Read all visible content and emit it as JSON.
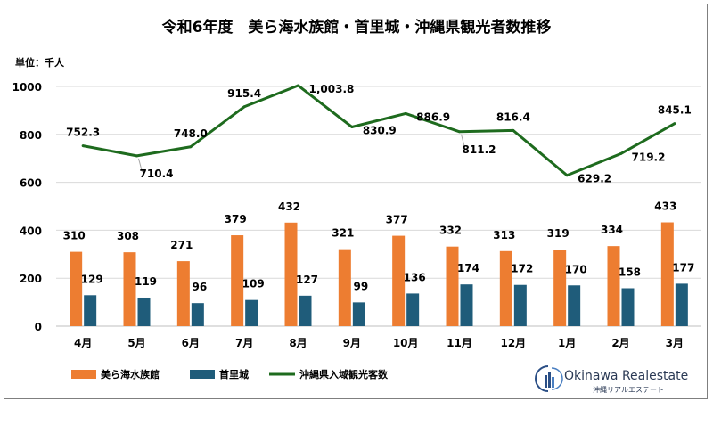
{
  "title": "令和6年度　美ら海水族館・首里城・沖縄県観光者数推移",
  "unit_label": "単位：千人",
  "logo": {
    "name": "Okinawa Realestate",
    "subtitle": "沖縄リアルエステート"
  },
  "colors": {
    "churaumi": "#ED7D31",
    "shurijo": "#1F5C7A",
    "visitors": "#1E6B1E",
    "grid": "#d9d9d9",
    "text": "#000000"
  },
  "chart_data": {
    "type": "bar",
    "title": "令和6年度　美ら海水族館・首里城・沖縄県観光者数推移",
    "categories": [
      "4月",
      "5月",
      "6月",
      "7月",
      "8月",
      "9月",
      "10月",
      "11月",
      "12月",
      "1月",
      "2月",
      "3月"
    ],
    "yticks": [
      "0",
      "200",
      "400",
      "600",
      "800",
      "1000"
    ],
    "ylim": [
      0,
      1000
    ],
    "ylabel": "単位：千人",
    "grid": true,
    "legend_position": "bottom",
    "series": [
      {
        "name": "美ら海水族館",
        "type": "bar",
        "values": [
          310,
          308,
          271,
          379,
          432,
          321,
          377,
          332,
          313,
          319,
          334,
          433
        ],
        "labels": [
          "310",
          "308",
          "271",
          "379",
          "432",
          "321",
          "377",
          "332",
          "313",
          "319",
          "334",
          "433"
        ]
      },
      {
        "name": "首里城",
        "type": "bar",
        "values": [
          129,
          119,
          96,
          109,
          127,
          99,
          136,
          174,
          172,
          170,
          158,
          177
        ],
        "labels": [
          "129",
          "119",
          "96",
          "109",
          "127",
          "99",
          "136",
          "174",
          "172",
          "170",
          "158",
          "177"
        ]
      },
      {
        "name": "沖縄県入域観光客数",
        "type": "line",
        "values": [
          752.3,
          710.4,
          748.0,
          915.4,
          1003.8,
          830.9,
          886.9,
          811.2,
          816.4,
          629.2,
          719.2,
          845.1
        ],
        "labels": [
          "752.3",
          "710.4",
          "748.0",
          "915.4",
          "1,003.8",
          "830.9",
          "886.9",
          "811.2",
          "816.4",
          "629.2",
          "719.2",
          "845.1"
        ]
      }
    ]
  }
}
